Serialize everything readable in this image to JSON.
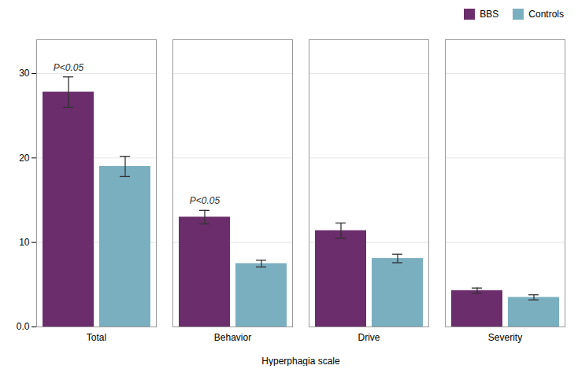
{
  "chart_data": {
    "type": "bar",
    "xlabel": "Hyperphagia scale",
    "categories": [
      "Total",
      "Behavior",
      "Drive",
      "Severity"
    ],
    "series": [
      {
        "name": "BBS",
        "color": "#6B2D6B",
        "values": [
          27.8,
          13.0,
          11.4,
          4.3
        ],
        "errors": [
          1.8,
          0.8,
          0.9,
          0.3
        ]
      },
      {
        "name": "Controls",
        "color": "#7AAFC0",
        "values": [
          19.0,
          7.5,
          8.1,
          3.5
        ],
        "errors": [
          1.2,
          0.4,
          0.5,
          0.3
        ]
      }
    ],
    "ylim": [
      0,
      34
    ],
    "yticks": [
      {
        "value": 0,
        "label": "0.0"
      },
      10,
      20,
      30
    ],
    "grid": true,
    "legend": "upper right",
    "annotations": [
      {
        "text": "P<0.05",
        "category": "Total",
        "series": "BBS"
      },
      {
        "text": "P<0.05",
        "category": "Behavior",
        "series": "BBS"
      }
    ]
  }
}
